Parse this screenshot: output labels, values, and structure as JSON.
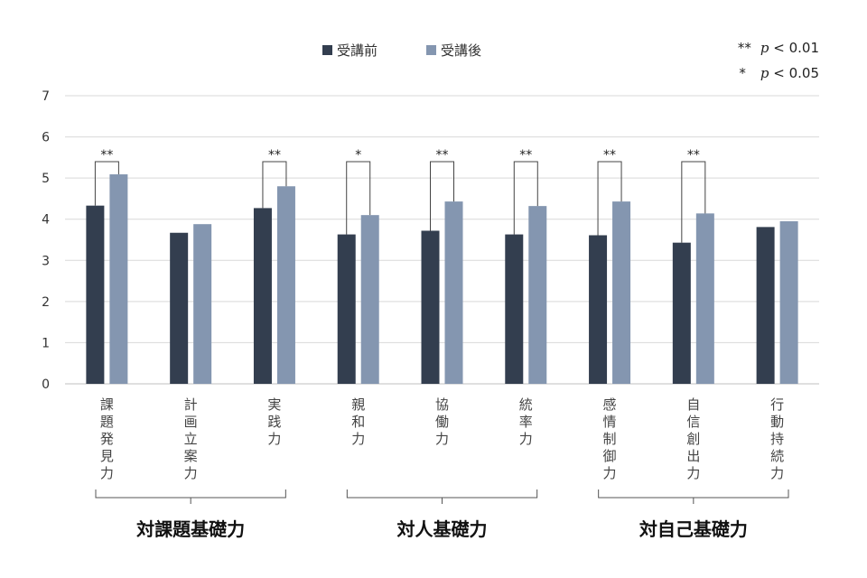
{
  "chart_data": {
    "type": "bar",
    "title": "",
    "xlabel": "",
    "ylabel": "",
    "ylim": [
      0,
      7
    ],
    "yticks": [
      "0",
      "1",
      "2",
      "3",
      "4",
      "5",
      "6",
      "7"
    ],
    "grid": true,
    "legend_position": "top-center",
    "colors": {
      "before": "#333e4f",
      "after": "#8496b0",
      "grid": "#d9d9d9",
      "axis": "#bfbfbf",
      "bracket": "#444444"
    },
    "categories": [
      "課題発見力",
      "計画立案力",
      "実践力",
      "親和力",
      "協働力",
      "統率力",
      "感情制御力",
      "自信創出力",
      "行動持続力"
    ],
    "series": [
      {
        "name": "受講前",
        "values": [
          4.33,
          3.67,
          4.27,
          3.63,
          3.72,
          3.63,
          3.61,
          3.43,
          3.81
        ]
      },
      {
        "name": "受講後",
        "values": [
          5.09,
          3.88,
          4.8,
          4.1,
          4.43,
          4.32,
          4.43,
          4.14,
          3.95
        ]
      }
    ],
    "significance": [
      "**",
      "",
      "**",
      "*",
      "**",
      "**",
      "**",
      "**",
      ""
    ],
    "significance_note": [
      {
        "stars": "**",
        "p": "p",
        "rest": " < 0.01"
      },
      {
        "stars": "*",
        "p": "p",
        "rest": " < 0.05"
      }
    ],
    "groups": [
      {
        "label": "対課題基礎力",
        "from": 0,
        "to": 2
      },
      {
        "label": "対人基礎力",
        "from": 3,
        "to": 5
      },
      {
        "label": "対自己基礎力",
        "from": 6,
        "to": 8
      }
    ]
  }
}
